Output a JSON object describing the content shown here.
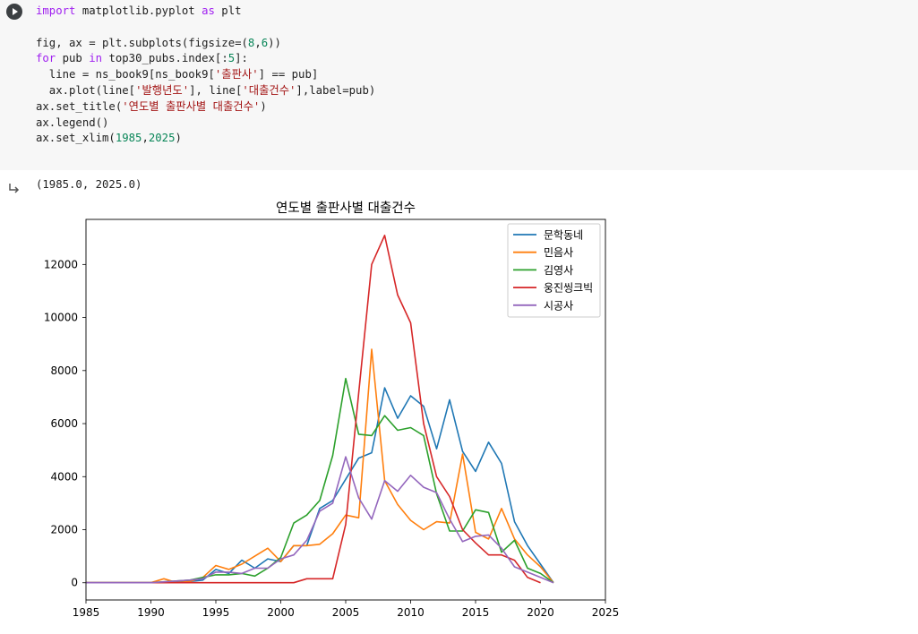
{
  "cell": {
    "code_lines": [
      [
        {
          "t": "import",
          "c": "kw"
        },
        {
          "t": " matplotlib.pyplot "
        },
        {
          "t": "as",
          "c": "kw"
        },
        {
          "t": " plt"
        }
      ],
      [],
      [
        {
          "t": "fig, ax = plt.subplots(figsize=("
        },
        {
          "t": "8",
          "c": "num"
        },
        {
          "t": ","
        },
        {
          "t": "6",
          "c": "num"
        },
        {
          "t": "))"
        }
      ],
      [
        {
          "t": "for",
          "c": "kw"
        },
        {
          "t": " pub "
        },
        {
          "t": "in",
          "c": "kw"
        },
        {
          "t": " top30_pubs.index[:"
        },
        {
          "t": "5",
          "c": "num"
        },
        {
          "t": "]:"
        }
      ],
      [
        {
          "t": "  line = ns_book9[ns_book9["
        },
        {
          "t": "'출판사'",
          "c": "str"
        },
        {
          "t": "] == pub]"
        }
      ],
      [
        {
          "t": "  ax.plot(line["
        },
        {
          "t": "'발행년도'",
          "c": "str"
        },
        {
          "t": "], line["
        },
        {
          "t": "'대출건수'",
          "c": "str"
        },
        {
          "t": "],label=pub)"
        }
      ],
      [
        {
          "t": "ax.set_title("
        },
        {
          "t": "'연도별 출판사별 대출건수'",
          "c": "str"
        },
        {
          "t": ")"
        }
      ],
      [
        {
          "t": "ax.legend()"
        }
      ],
      [
        {
          "t": "ax.set_xlim("
        },
        {
          "t": "1985",
          "c": "num"
        },
        {
          "t": ","
        },
        {
          "t": "2025",
          "c": "num"
        },
        {
          "t": ")"
        }
      ]
    ]
  },
  "output": {
    "text": "(1985.0, 2025.0)"
  },
  "chart_data": {
    "type": "line",
    "title": "연도별 출판사별 대출건수",
    "xlabel": "",
    "ylabel": "",
    "xlim": [
      1985,
      2025
    ],
    "ylim": [
      -650,
      13700
    ],
    "xticks": [
      1985,
      1990,
      1995,
      2000,
      2005,
      2010,
      2015,
      2020,
      2025
    ],
    "yticks": [
      0,
      2000,
      4000,
      6000,
      8000,
      10000,
      12000
    ],
    "legend_position": "top-right",
    "grid": false,
    "series": [
      {
        "name": "문학동네",
        "color": "#1f77b4",
        "x": [
          1985,
          1990,
          1993,
          1994,
          1995,
          1996,
          1997,
          1998,
          1999,
          2000,
          2001,
          2002,
          2003,
          2004,
          2005,
          2006,
          2007,
          2008,
          2009,
          2010,
          2011,
          2012,
          2013,
          2014,
          2015,
          2016,
          2017,
          2018,
          2019,
          2020,
          2021
        ],
        "y": [
          0,
          0,
          50,
          100,
          500,
          350,
          850,
          550,
          900,
          800,
          1400,
          1400,
          2800,
          3100,
          3900,
          4700,
          4900,
          7350,
          6200,
          7050,
          6650,
          5050,
          6900,
          4950,
          4200,
          5300,
          4500,
          2300,
          1400,
          700,
          0
        ]
      },
      {
        "name": "민음사",
        "color": "#ff7f0e",
        "x": [
          1985,
          1990,
          1991,
          1992,
          1993,
          1994,
          1995,
          1996,
          1997,
          1998,
          1999,
          2000,
          2001,
          2002,
          2003,
          2004,
          2005,
          2006,
          2007,
          2008,
          2009,
          2010,
          2011,
          2012,
          2013,
          2014,
          2015,
          2016,
          2017,
          2018,
          2019,
          2020,
          2021
        ],
        "y": [
          0,
          0,
          150,
          0,
          50,
          200,
          650,
          500,
          700,
          1000,
          1300,
          800,
          1400,
          1400,
          1450,
          1850,
          2550,
          2450,
          8800,
          3850,
          2950,
          2350,
          2000,
          2300,
          2250,
          4850,
          1900,
          1650,
          2800,
          1650,
          1050,
          600,
          0
        ]
      },
      {
        "name": "김영사",
        "color": "#2ca02c",
        "x": [
          1985,
          1990,
          1993,
          1994,
          1995,
          1996,
          1997,
          1998,
          1999,
          2000,
          2001,
          2002,
          2003,
          2004,
          2005,
          2006,
          2007,
          2008,
          2009,
          2010,
          2011,
          2012,
          2013,
          2014,
          2015,
          2016,
          2017,
          2018,
          2019,
          2020,
          2021
        ],
        "y": [
          0,
          0,
          100,
          200,
          300,
          300,
          350,
          250,
          550,
          950,
          2250,
          2550,
          3100,
          4800,
          7700,
          5600,
          5550,
          6300,
          5750,
          5850,
          5550,
          3350,
          1950,
          1950,
          2750,
          2650,
          1150,
          1600,
          550,
          350,
          0
        ]
      },
      {
        "name": "웅진씽크빅",
        "color": "#d62728",
        "x": [
          1985,
          1993,
          1994,
          1995,
          2000,
          2001,
          2002,
          2003,
          2004,
          2005,
          2006,
          2007,
          2008,
          2009,
          2010,
          2011,
          2012,
          2013,
          2014,
          2015,
          2016,
          2017,
          2018,
          2019,
          2020
        ],
        "y": [
          0,
          0,
          0,
          0,
          0,
          0,
          150,
          150,
          150,
          2200,
          7150,
          12000,
          13100,
          10850,
          9800,
          6000,
          4000,
          3250,
          2000,
          1500,
          1050,
          1050,
          850,
          200,
          0
        ]
      },
      {
        "name": "시공사",
        "color": "#9467bd",
        "x": [
          1985,
          1990,
          1993,
          1994,
          1995,
          1996,
          1997,
          1998,
          1999,
          2000,
          2001,
          2002,
          2003,
          2004,
          2005,
          2006,
          2007,
          2008,
          2009,
          2010,
          2011,
          2012,
          2013,
          2014,
          2015,
          2016,
          2017,
          2018,
          2019,
          2020,
          2021
        ],
        "y": [
          0,
          0,
          100,
          150,
          400,
          400,
          350,
          550,
          550,
          900,
          1050,
          1600,
          2700,
          3000,
          4750,
          3200,
          2400,
          3850,
          3450,
          4050,
          3600,
          3400,
          2400,
          1550,
          1750,
          1800,
          1300,
          600,
          400,
          200,
          0
        ]
      }
    ]
  }
}
